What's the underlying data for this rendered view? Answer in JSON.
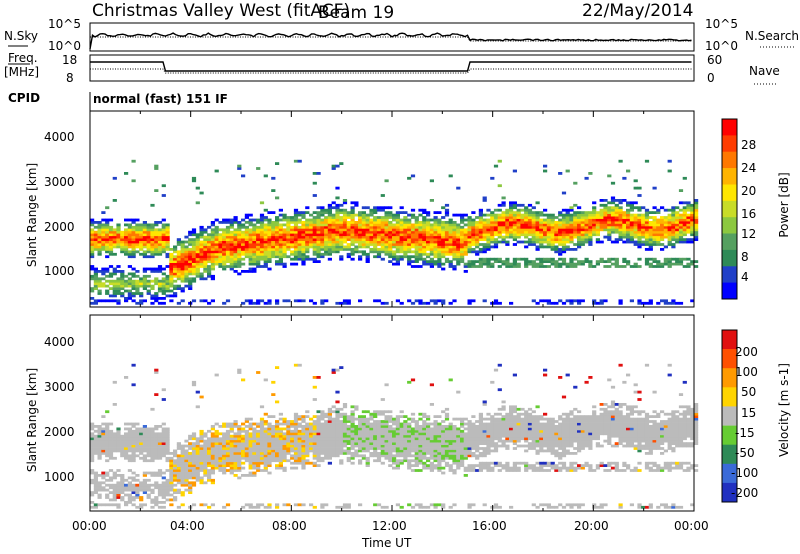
{
  "header": {
    "station": "Christmas Valley West (fitACF)",
    "beam": "Beam 19",
    "date": "22/May/2014"
  },
  "panels": {
    "nsky": {
      "label": "N.Sky",
      "ticks": [
        "10^5",
        "10^0"
      ]
    },
    "nsearch": {
      "label": "N.Search",
      "ticks": [
        "10^5",
        "10^0"
      ]
    },
    "freq": {
      "label_line1": "Freq.",
      "label_line2": "[MHz]",
      "ticks": [
        "18",
        "8"
      ]
    },
    "nave": {
      "label": "Nave",
      "ticks": [
        "60",
        "0"
      ]
    },
    "cpid": {
      "label": "CPID",
      "value": "normal (fast) 151 IF"
    }
  },
  "chart_data": [
    {
      "type": "heatmap",
      "panel": "power",
      "ylabel": "Slant Range [km]",
      "yticks": [
        "4000",
        "3000",
        "2000",
        "1000"
      ],
      "ylim": [
        200,
        4600
      ],
      "xlim": [
        "00:00",
        "24:00"
      ],
      "colorbar": {
        "label": "Power [dB]",
        "ticks": [
          "28",
          "24",
          "20",
          "16",
          "12",
          "8",
          "4"
        ],
        "colors": [
          "#0000ff",
          "#2040c8",
          "#2e8a57",
          "#55a060",
          "#8cc840",
          "#c8dc28",
          "#ffe600",
          "#ffb400",
          "#ff7800",
          "#ff3c00",
          "#ff0000"
        ]
      }
    },
    {
      "type": "heatmap",
      "panel": "velocity",
      "ylabel": "Slant Range [km]",
      "yticks": [
        "4000",
        "3000",
        "2000",
        "1000"
      ],
      "ylim": [
        200,
        4600
      ],
      "xlim": [
        "00:00",
        "24:00"
      ],
      "colorbar": {
        "label": "Velocity [m s-1]",
        "ticks": [
          "200",
          "100",
          "50",
          "15",
          "-15",
          "-50",
          "-100",
          "-200"
        ],
        "colors": [
          "#2030c0",
          "#3a6ad8",
          "#2e8a57",
          "#66cc33",
          "#bbbbbb",
          "#ffd400",
          "#ff9a00",
          "#ff5000",
          "#e01010"
        ]
      }
    }
  ],
  "xaxis": {
    "label": "Time UT",
    "ticks": [
      "00:00",
      "04:00",
      "08:00",
      "12:00",
      "16:00",
      "20:00",
      "00:00"
    ]
  }
}
